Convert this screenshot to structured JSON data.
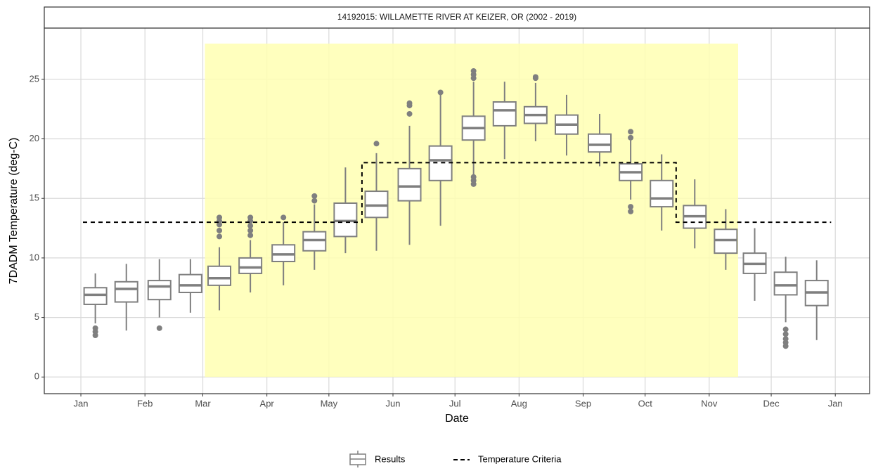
{
  "chart_data": {
    "type": "box",
    "title": "14192015: WILLAMETTE RIVER AT KEIZER, OR (2002 - 2019)",
    "xlabel": "Date",
    "ylabel": "7DADM Temperature (deg-C)",
    "xlim": [
      -17.7,
      381.6
    ],
    "ylim": [
      -1.4,
      29.3
    ],
    "xticks": [
      {
        "value": 0,
        "label": "Jan"
      },
      {
        "value": 31,
        "label": "Feb"
      },
      {
        "value": 59,
        "label": "Mar"
      },
      {
        "value": 90,
        "label": "Apr"
      },
      {
        "value": 120,
        "label": "May"
      },
      {
        "value": 151,
        "label": "Jun"
      },
      {
        "value": 181,
        "label": "Jul"
      },
      {
        "value": 212,
        "label": "Aug"
      },
      {
        "value": 243,
        "label": "Sep"
      },
      {
        "value": 273,
        "label": "Oct"
      },
      {
        "value": 304,
        "label": "Nov"
      },
      {
        "value": 334,
        "label": "Dec"
      },
      {
        "value": 365,
        "label": "Jan"
      }
    ],
    "yticks": [
      0,
      5,
      10,
      15,
      20,
      25
    ],
    "grid": true,
    "shaded_region": {
      "x": [
        60,
        318
      ],
      "y": [
        0,
        28
      ],
      "color": "#ffffb3"
    },
    "series": [
      {
        "name": "Results",
        "color": "#7f7f7f",
        "x": [
          7,
          22,
          38,
          53,
          67,
          82,
          98,
          113,
          128,
          143,
          159,
          174,
          190,
          205,
          220,
          235,
          251,
          266,
          281,
          297,
          312,
          326,
          341,
          356
        ],
        "low": [
          4.5,
          3.9,
          5.0,
          5.4,
          5.6,
          7.1,
          7.7,
          9.0,
          10.4,
          10.6,
          11.1,
          12.7,
          17.0,
          18.3,
          19.8,
          18.6,
          17.7,
          14.9,
          12.3,
          10.8,
          9.0,
          6.4,
          4.6,
          3.1
        ],
        "q1": [
          6.1,
          6.3,
          6.5,
          7.1,
          7.7,
          8.7,
          9.7,
          10.6,
          11.8,
          13.4,
          14.8,
          16.5,
          19.9,
          21.1,
          21.3,
          20.4,
          18.9,
          16.5,
          14.3,
          12.5,
          10.4,
          8.7,
          6.9,
          6.0
        ],
        "median": [
          6.9,
          7.4,
          7.6,
          7.7,
          8.3,
          9.2,
          10.3,
          11.5,
          13.1,
          14.4,
          16.0,
          18.2,
          20.9,
          22.4,
          22.0,
          21.2,
          19.5,
          17.2,
          15.0,
          13.5,
          11.5,
          9.5,
          7.7,
          7.1
        ],
        "q3": [
          7.5,
          8.0,
          8.1,
          8.6,
          9.3,
          10.0,
          11.1,
          12.2,
          14.6,
          15.6,
          17.5,
          19.4,
          21.9,
          23.1,
          22.7,
          22.0,
          20.4,
          17.9,
          16.5,
          14.4,
          12.4,
          10.4,
          8.8,
          8.1
        ],
        "high": [
          8.7,
          9.5,
          9.9,
          9.9,
          10.9,
          11.5,
          13.0,
          14.5,
          17.6,
          18.8,
          21.1,
          23.7,
          24.8,
          24.8,
          24.7,
          23.7,
          22.1,
          20.0,
          18.7,
          16.6,
          14.1,
          12.5,
          10.1,
          9.8
        ],
        "outliers": [
          [
            4.1,
            3.8,
            3.5
          ],
          [],
          [
            4.1
          ],
          [],
          [
            11.8,
            12.3,
            12.8,
            13.1,
            13.4
          ],
          [
            11.9,
            12.3,
            12.7,
            13.1,
            13.4
          ],
          [
            13.4
          ],
          [
            14.8,
            15.2
          ],
          [],
          [
            19.6
          ],
          [
            22.1,
            22.8,
            23.0
          ],
          [
            23.9
          ],
          [
            16.2,
            16.5,
            16.8,
            25.1,
            25.4,
            25.7
          ],
          [],
          [
            25.1,
            25.2
          ],
          [],
          [],
          [
            14.3,
            13.9,
            20.1,
            20.6
          ],
          [],
          [],
          [],
          [],
          [
            4.0,
            3.6,
            3.2,
            2.9,
            2.6
          ],
          []
        ]
      },
      {
        "name": "Temperature Criteria",
        "type": "line",
        "color": "#000000",
        "x": [
          1,
          136,
          136,
          288,
          288,
          363
        ],
        "values": [
          13,
          13,
          18,
          18,
          13,
          13
        ]
      }
    ]
  }
}
